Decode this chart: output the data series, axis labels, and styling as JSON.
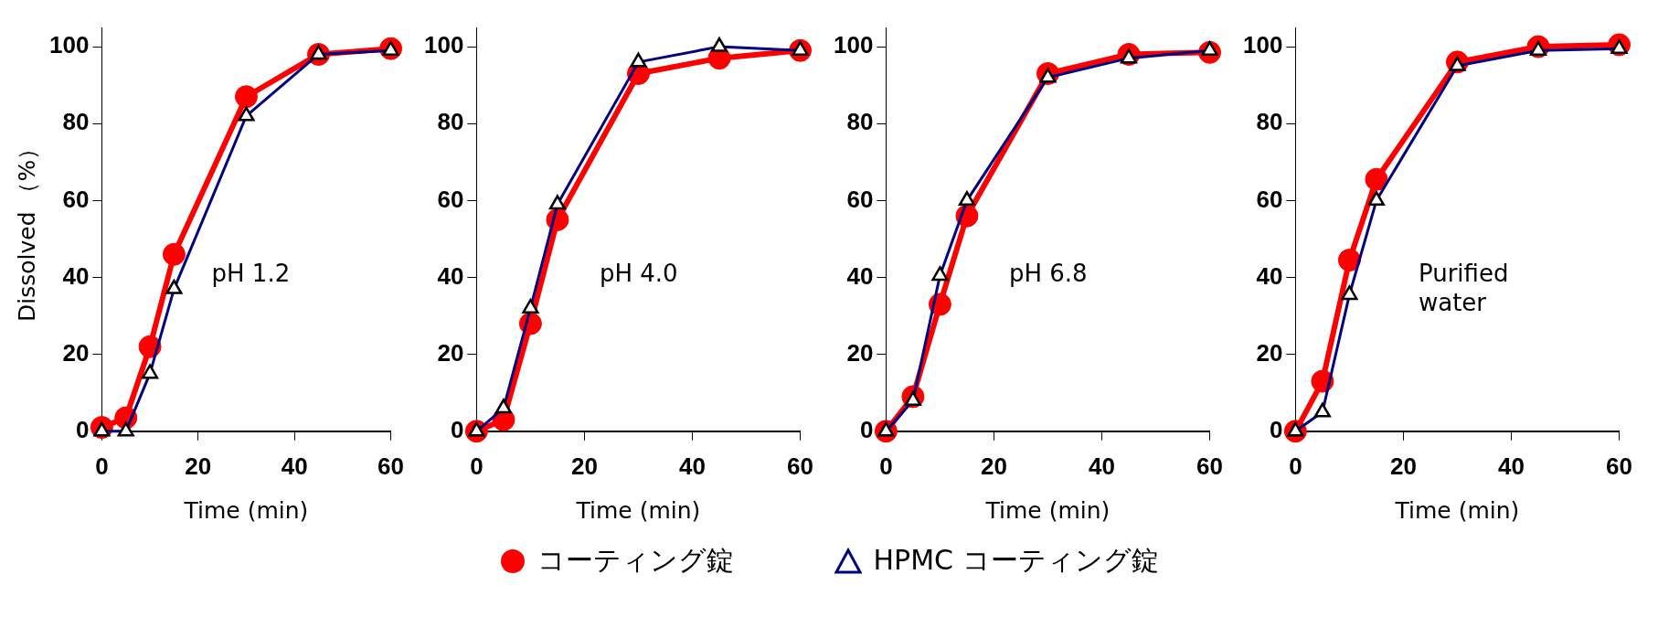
{
  "chart_data": [
    {
      "type": "line",
      "annotations": [
        "pH 1.2"
      ],
      "xlabel": "Time (min)",
      "ylabel": "Dissolved （%）",
      "x": [
        0,
        5,
        10,
        15,
        30,
        45,
        60
      ],
      "xlim": [
        0,
        60
      ],
      "xticks": [
        0,
        20,
        40,
        60
      ],
      "ylim": [
        0,
        105
      ],
      "yticks": [
        0,
        20,
        40,
        60,
        80,
        100
      ],
      "grid": false,
      "legend": "bottom",
      "series": [
        {
          "name": "コーティング錠",
          "color": "#ff0000",
          "marker": "circle",
          "values": [
            1,
            3.5,
            22,
            46,
            87,
            98,
            99.5
          ]
        },
        {
          "name": "HPMC コーティング錠",
          "color": "#000080",
          "marker": "triangle",
          "values": [
            0,
            0,
            15,
            37,
            82,
            98,
            99
          ]
        }
      ]
    },
    {
      "type": "line",
      "annotations": [
        "pH 4.0"
      ],
      "xlabel": "Time (min)",
      "x": [
        0,
        5,
        10,
        15,
        30,
        45,
        60
      ],
      "xlim": [
        0,
        60
      ],
      "xticks": [
        0,
        20,
        40,
        60
      ],
      "ylim": [
        0,
        105
      ],
      "yticks": [
        0,
        20,
        40,
        60,
        80,
        100
      ],
      "grid": false,
      "series": [
        {
          "color": "#ff0000",
          "marker": "circle",
          "values": [
            0,
            3,
            28,
            55,
            93,
            97,
            99
          ]
        },
        {
          "color": "#000080",
          "marker": "triangle",
          "values": [
            0,
            6,
            32,
            59,
            96,
            100,
            99
          ]
        }
      ]
    },
    {
      "type": "line",
      "annotations": [
        "pH 6.8"
      ],
      "xlabel": "Time (min)",
      "x": [
        0,
        5,
        10,
        15,
        30,
        45,
        60
      ],
      "xlim": [
        0,
        60
      ],
      "xticks": [
        0,
        20,
        40,
        60
      ],
      "ylim": [
        0,
        105
      ],
      "yticks": [
        0,
        20,
        40,
        60,
        80,
        100
      ],
      "grid": false,
      "series": [
        {
          "color": "#ff0000",
          "marker": "circle",
          "values": [
            0,
            9,
            33,
            56,
            93,
            98,
            98.5
          ]
        },
        {
          "color": "#000080",
          "marker": "triangle",
          "values": [
            0,
            8,
            40.5,
            60,
            92,
            97,
            99
          ]
        }
      ]
    },
    {
      "type": "line",
      "annotations": [
        "Purified water"
      ],
      "xlabel": "Time (min)",
      "x": [
        0,
        5,
        10,
        15,
        30,
        45,
        60
      ],
      "xlim": [
        0,
        60
      ],
      "xticks": [
        0,
        20,
        40,
        60
      ],
      "ylim": [
        0,
        105
      ],
      "yticks": [
        0,
        20,
        40,
        60,
        80,
        100
      ],
      "grid": false,
      "series": [
        {
          "color": "#ff0000",
          "marker": "circle",
          "values": [
            0,
            13,
            44.5,
            65.5,
            96,
            100,
            100.5
          ]
        },
        {
          "color": "#000080",
          "marker": "triangle",
          "values": [
            0,
            5,
            35.5,
            60,
            95,
            99,
            99.5
          ]
        }
      ]
    }
  ]
}
